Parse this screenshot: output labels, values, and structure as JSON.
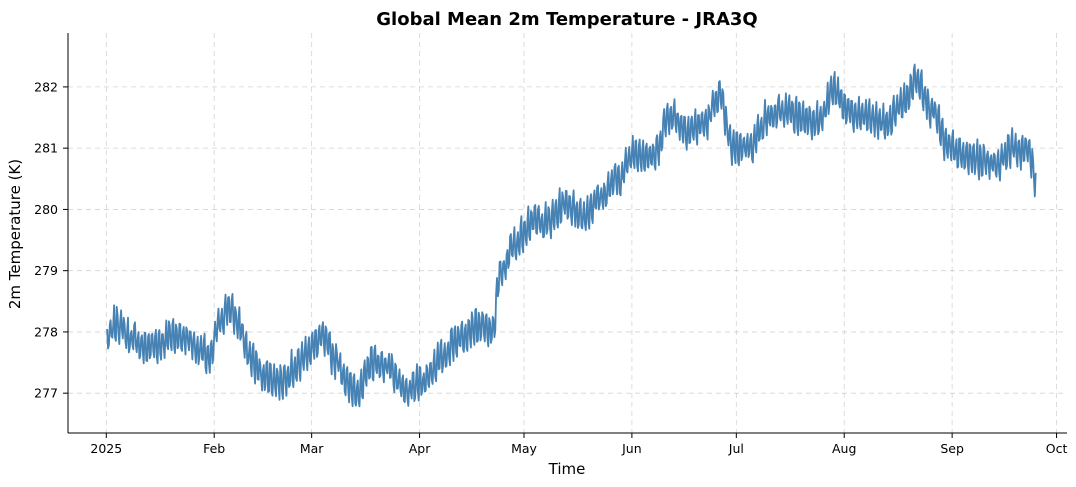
{
  "chart_data": {
    "type": "line",
    "title": "Global Mean 2m Temperature - JRA3Q",
    "xlabel": "Time",
    "ylabel": "2m Temperature (K)",
    "x_start": "2025-01-01",
    "x_end": "2025-09-25",
    "xlim": [
      "2024-12-21",
      "2025-10-04"
    ],
    "ylim": [
      276.35,
      282.88
    ],
    "grid": true,
    "x_ticks": [
      {
        "date": "2025-01-01",
        "label": "2025"
      },
      {
        "date": "2025-02-01",
        "label": "Feb"
      },
      {
        "date": "2025-03-01",
        "label": "Mar"
      },
      {
        "date": "2025-04-01",
        "label": "Apr"
      },
      {
        "date": "2025-05-01",
        "label": "May"
      },
      {
        "date": "2025-06-01",
        "label": "Jun"
      },
      {
        "date": "2025-07-01",
        "label": "Jul"
      },
      {
        "date": "2025-08-01",
        "label": "Aug"
      },
      {
        "date": "2025-09-01",
        "label": "Sep"
      },
      {
        "date": "2025-10-01",
        "label": "Oct"
      }
    ],
    "y_ticks": [
      277,
      278,
      279,
      280,
      281,
      282
    ],
    "series": [
      {
        "color": "#4682b4",
        "sampling": "6-hourly",
        "trend": [
          [
            "2025-01-01",
            277.85
          ],
          [
            "2025-01-04",
            278.15
          ],
          [
            "2025-01-08",
            277.9
          ],
          [
            "2025-01-12",
            277.75
          ],
          [
            "2025-01-16",
            277.8
          ],
          [
            "2025-01-20",
            277.95
          ],
          [
            "2025-01-24",
            277.9
          ],
          [
            "2025-01-28",
            277.7
          ],
          [
            "2025-01-31",
            277.55
          ],
          [
            "2025-02-02",
            278.1
          ],
          [
            "2025-02-05",
            278.4
          ],
          [
            "2025-02-08",
            278.15
          ],
          [
            "2025-02-11",
            277.6
          ],
          [
            "2025-02-15",
            277.3
          ],
          [
            "2025-02-20",
            277.2
          ],
          [
            "2025-02-24",
            277.4
          ],
          [
            "2025-03-01",
            277.75
          ],
          [
            "2025-03-04",
            277.9
          ],
          [
            "2025-03-08",
            277.55
          ],
          [
            "2025-03-12",
            277.1
          ],
          [
            "2025-03-15",
            277.05
          ],
          [
            "2025-03-18",
            277.5
          ],
          [
            "2025-03-23",
            277.45
          ],
          [
            "2025-03-28",
            277.0
          ],
          [
            "2025-04-02",
            277.2
          ],
          [
            "2025-04-07",
            277.55
          ],
          [
            "2025-04-12",
            277.9
          ],
          [
            "2025-04-17",
            278.1
          ],
          [
            "2025-04-22",
            278.0
          ],
          [
            "2025-04-24",
            278.9
          ],
          [
            "2025-04-28",
            279.4
          ],
          [
            "2025-05-03",
            279.8
          ],
          [
            "2025-05-08",
            279.8
          ],
          [
            "2025-05-13",
            280.1
          ],
          [
            "2025-05-18",
            279.9
          ],
          [
            "2025-05-23",
            280.2
          ],
          [
            "2025-05-28",
            280.5
          ],
          [
            "2025-06-02",
            280.95
          ],
          [
            "2025-06-07",
            280.85
          ],
          [
            "2025-06-12",
            281.55
          ],
          [
            "2025-06-17",
            281.3
          ],
          [
            "2025-06-22",
            281.4
          ],
          [
            "2025-06-26",
            281.85
          ],
          [
            "2025-06-30",
            281.0
          ],
          [
            "2025-07-05",
            281.05
          ],
          [
            "2025-07-10",
            281.5
          ],
          [
            "2025-07-15",
            281.6
          ],
          [
            "2025-07-20",
            281.5
          ],
          [
            "2025-07-25",
            281.45
          ],
          [
            "2025-07-29",
            281.95
          ],
          [
            "2025-08-03",
            281.55
          ],
          [
            "2025-08-08",
            281.5
          ],
          [
            "2025-08-13",
            281.4
          ],
          [
            "2025-08-18",
            281.75
          ],
          [
            "2025-08-22",
            282.15
          ],
          [
            "2025-08-26",
            281.65
          ],
          [
            "2025-08-31",
            281.0
          ],
          [
            "2025-09-05",
            280.85
          ],
          [
            "2025-09-10",
            280.8
          ],
          [
            "2025-09-14",
            280.75
          ],
          [
            "2025-09-18",
            281.0
          ],
          [
            "2025-09-23",
            280.95
          ],
          [
            "2025-09-25",
            280.5
          ]
        ]
      }
    ]
  }
}
